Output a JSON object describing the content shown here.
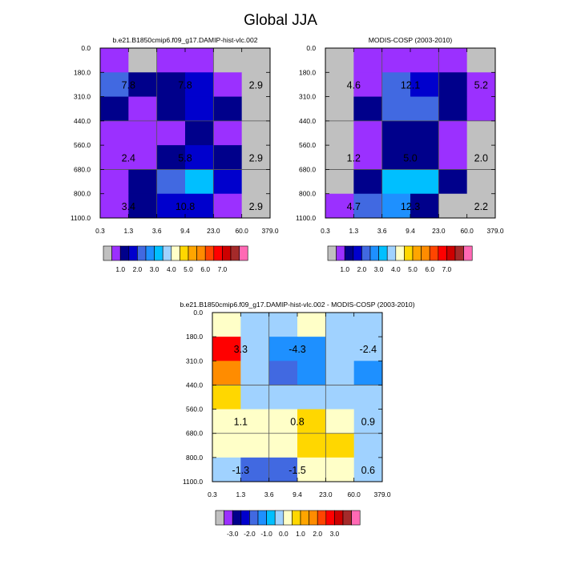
{
  "figure": {
    "title": "Global JJA"
  },
  "chart_data": [
    {
      "type": "heatmap",
      "title": "b.e21.B1850cmip6.f09_g17.DAMIP-hist-vlc.002",
      "x_edges": [
        "0.3",
        "1.3",
        "3.6",
        "9.4",
        "23.0",
        "60.0",
        "379.0"
      ],
      "y_edges": [
        "0.0",
        "180.0",
        "310.0",
        "440.0",
        "560.0",
        "680.0",
        "800.0",
        "1100.0"
      ],
      "cells": [
        [
          1,
          0,
          1,
          1,
          0,
          0
        ],
        [
          4,
          2,
          2,
          3,
          1,
          0
        ],
        [
          2,
          1,
          2,
          3,
          2,
          0
        ],
        [
          1,
          1,
          1,
          2,
          1,
          0
        ],
        [
          1,
          1,
          2,
          3,
          2,
          0
        ],
        [
          1,
          2,
          4,
          6,
          3,
          0
        ],
        [
          1,
          2,
          3,
          3,
          1,
          0
        ]
      ],
      "annotations": [
        {
          "text": "7.8",
          "col": 0.5,
          "row": 1
        },
        {
          "text": "7.8",
          "col": 2.5,
          "row": 1
        },
        {
          "text": "2.9",
          "col": 5,
          "row": 1
        },
        {
          "text": "2.4",
          "col": 0.5,
          "row": 4
        },
        {
          "text": "5.8",
          "col": 2.5,
          "row": 4
        },
        {
          "text": "2.9",
          "col": 5,
          "row": 4
        },
        {
          "text": "3.4",
          "col": 0.5,
          "row": 6
        },
        {
          "text": "10.8",
          "col": 2.5,
          "row": 6
        },
        {
          "text": "2.9",
          "col": 5,
          "row": 6
        }
      ],
      "colorbar": {
        "labels": [
          "1.0",
          "2.0",
          "3.0",
          "4.0",
          "5.0",
          "6.0",
          "7.0"
        ]
      }
    },
    {
      "type": "heatmap",
      "title": "MODIS-COSP (2003-2010)",
      "x_edges": [
        "0.3",
        "1.3",
        "3.6",
        "9.4",
        "23.0",
        "60.0",
        "379.0"
      ],
      "y_edges": [
        "0.0",
        "180.0",
        "310.0",
        "440.0",
        "560.0",
        "680.0",
        "800.0",
        "1100.0"
      ],
      "cells": [
        [
          0,
          1,
          1,
          1,
          1,
          0
        ],
        [
          0,
          1,
          4,
          3,
          2,
          1
        ],
        [
          0,
          2,
          4,
          4,
          2,
          1
        ],
        [
          0,
          1,
          2,
          2,
          1,
          0
        ],
        [
          0,
          1,
          2,
          2,
          1,
          0
        ],
        [
          0,
          2,
          6,
          6,
          2,
          0
        ],
        [
          1,
          4,
          5,
          2,
          0,
          0
        ]
      ],
      "annotations": [
        {
          "text": "4.6",
          "col": 0.5,
          "row": 1
        },
        {
          "text": "12.1",
          "col": 2.5,
          "row": 1
        },
        {
          "text": "5.2",
          "col": 5,
          "row": 1
        },
        {
          "text": "1.2",
          "col": 0.5,
          "row": 4
        },
        {
          "text": "5.0",
          "col": 2.5,
          "row": 4
        },
        {
          "text": "2.0",
          "col": 5,
          "row": 4
        },
        {
          "text": "4.7",
          "col": 0.5,
          "row": 6
        },
        {
          "text": "12.3",
          "col": 2.5,
          "row": 6
        },
        {
          "text": "2.2",
          "col": 5,
          "row": 6
        }
      ],
      "colorbar": {
        "labels": [
          "1.0",
          "2.0",
          "3.0",
          "4.0",
          "5.0",
          "6.0",
          "7.0"
        ]
      }
    },
    {
      "type": "heatmap",
      "title": "b.e21.B1850cmip6.f09_g17.DAMIP-hist-vlc.002 - MODIS-COSP (2003-2010)",
      "x_edges": [
        "0.3",
        "1.3",
        "3.6",
        "9.4",
        "23.0",
        "60.0",
        "379.0"
      ],
      "y_edges": [
        "0.0",
        "180.0",
        "310.0",
        "440.0",
        "560.0",
        "680.0",
        "800.0",
        "1100.0"
      ],
      "cells": [
        [
          8,
          7,
          7,
          8,
          7,
          7
        ],
        [
          13,
          7,
          5,
          5,
          7,
          7
        ],
        [
          11,
          7,
          4,
          5,
          7,
          5
        ],
        [
          9,
          7,
          7,
          7,
          7,
          7
        ],
        [
          8,
          8,
          8,
          9,
          8,
          7
        ],
        [
          8,
          8,
          8,
          9,
          9,
          7
        ],
        [
          7,
          4,
          4,
          8,
          8,
          7
        ]
      ],
      "annotations": [
        {
          "text": "3.3",
          "col": 0.5,
          "row": 1
        },
        {
          "text": "-4.3",
          "col": 2.5,
          "row": 1
        },
        {
          "text": "-2.4",
          "col": 5,
          "row": 1
        },
        {
          "text": "1.1",
          "col": 0.5,
          "row": 4
        },
        {
          "text": "0.8",
          "col": 2.5,
          "row": 4
        },
        {
          "text": "0.9",
          "col": 5,
          "row": 4
        },
        {
          "text": "-1.3",
          "col": 0.5,
          "row": 6
        },
        {
          "text": "-1.5",
          "col": 2.5,
          "row": 6
        },
        {
          "text": "0.6",
          "col": 5,
          "row": 6
        }
      ],
      "colorbar": {
        "labels": [
          "-3.0",
          "-2.0",
          "-1.0",
          "0.0",
          "1.0",
          "2.0",
          "3.0"
        ]
      }
    }
  ],
  "colors": {
    "seq": [
      "#c0c0c0",
      "#9b30ff",
      "#00008b",
      "#0000cd",
      "#4169e1",
      "#1e90ff",
      "#00bfff",
      "#a0d2ff",
      "#ffffc8",
      "#ffd700",
      "#ffa500",
      "#ff8c00",
      "#ff4500",
      "#ff0000",
      "#cd0000",
      "#a52a2a",
      "#ff69b4"
    ],
    "diff": [
      "#c0c0c0",
      "#9b30ff",
      "#00008b",
      "#0000cd",
      "#4169e1",
      "#1e90ff",
      "#00bfff",
      "#a0d2ff",
      "#ffffc8",
      "#ffd700",
      "#ffa500",
      "#ff8c00",
      "#ff4500",
      "#ff0000",
      "#cd0000",
      "#a52a2a",
      "#ff69b4"
    ]
  }
}
